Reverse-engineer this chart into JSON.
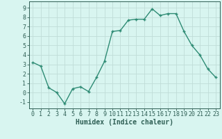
{
  "x": [
    0,
    1,
    2,
    3,
    4,
    5,
    6,
    7,
    8,
    9,
    10,
    11,
    12,
    13,
    14,
    15,
    16,
    17,
    18,
    19,
    20,
    21,
    22,
    23
  ],
  "y": [
    3.2,
    2.8,
    0.5,
    0.0,
    -1.2,
    0.4,
    0.6,
    0.1,
    1.6,
    3.3,
    6.5,
    6.6,
    7.7,
    7.8,
    7.8,
    8.9,
    8.2,
    8.4,
    8.4,
    6.5,
    5.0,
    4.0,
    2.5,
    1.6
  ],
  "line_color": "#2e8b74",
  "marker": "+",
  "marker_size": 3.5,
  "marker_edge_width": 1.0,
  "bg_color": "#d8f5f0",
  "grid_color": "#c0ddd8",
  "xlabel": "Humidex (Indice chaleur)",
  "xlim": [
    -0.5,
    23.5
  ],
  "ylim": [
    -1.7,
    9.7
  ],
  "xticks": [
    0,
    1,
    2,
    3,
    4,
    5,
    6,
    7,
    8,
    9,
    10,
    11,
    12,
    13,
    14,
    15,
    16,
    17,
    18,
    19,
    20,
    21,
    22,
    23
  ],
  "yticks": [
    -1,
    0,
    1,
    2,
    3,
    4,
    5,
    6,
    7,
    8,
    9
  ],
  "tick_color": "#2e5e54",
  "xlabel_fontsize": 7,
  "tick_fontsize": 6,
  "line_width": 1.0
}
